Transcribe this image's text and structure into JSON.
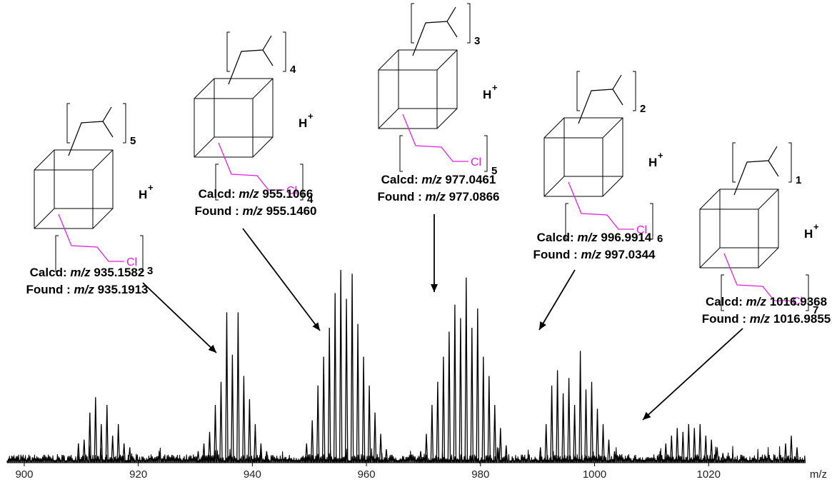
{
  "chart_data": {
    "type": "line",
    "xlabel": "m/z",
    "ylabel": "",
    "xlim": [
      897,
      1037
    ],
    "x_ticks": [
      "900",
      "920",
      "940",
      "960",
      "980",
      "1000",
      "1020"
    ],
    "ion_label": "H",
    "ion_charge": "+",
    "chloro_label": "Cl",
    "substituent_color": "#e020e0",
    "clusters": [
      {
        "n_isobutyl": "5",
        "n_chloropropyl": "3",
        "calcd_prefix": "Calcd: ",
        "calcd_mz_label": "m/z",
        "calcd_value": "935.1582",
        "found_prefix": "Found : ",
        "found_mz_label": "m/z",
        "found_value": "935.1913",
        "peaks": [
          [
            930.5,
            0.06
          ],
          [
            931.5,
            0.1
          ],
          [
            932.5,
            0.16
          ],
          [
            933.5,
            0.3
          ],
          [
            934.5,
            0.42
          ],
          [
            935.5,
            0.78
          ],
          [
            936.5,
            0.56
          ],
          [
            937.5,
            0.78
          ],
          [
            938.5,
            0.45
          ],
          [
            939.5,
            0.33
          ],
          [
            940.5,
            0.2
          ],
          [
            941.5,
            0.1
          ],
          [
            942.5,
            0.06
          ]
        ]
      },
      {
        "n_isobutyl": "4",
        "n_chloropropyl": "4",
        "calcd_prefix": "Calcd: ",
        "calcd_mz_label": "m/z",
        "calcd_value": "955.1066",
        "found_prefix": "Found : ",
        "found_mz_label": "m/z",
        "found_value": "955.1460",
        "peaks": [
          [
            949.5,
            0.1
          ],
          [
            950.5,
            0.22
          ],
          [
            951.5,
            0.4
          ],
          [
            952.5,
            0.55
          ],
          [
            953.5,
            0.7
          ],
          [
            954.5,
            0.88
          ],
          [
            955.5,
            1.0
          ],
          [
            956.5,
            0.85
          ],
          [
            957.5,
            0.98
          ],
          [
            958.5,
            0.72
          ],
          [
            959.5,
            0.55
          ],
          [
            960.5,
            0.4
          ],
          [
            961.5,
            0.26
          ],
          [
            962.5,
            0.15
          ],
          [
            963.5,
            0.07
          ]
        ]
      },
      {
        "n_isobutyl": "3",
        "n_chloropropyl": "5",
        "calcd_prefix": "Calcd: ",
        "calcd_mz_label": "m/z",
        "calcd_value": "977.0461",
        "found_prefix": "Found : ",
        "found_mz_label": "m/z",
        "found_value": "977.0866",
        "peaks": [
          [
            969.5,
            0.06
          ],
          [
            970.5,
            0.15
          ],
          [
            971.5,
            0.3
          ],
          [
            972.5,
            0.42
          ],
          [
            973.5,
            0.55
          ],
          [
            974.5,
            0.68
          ],
          [
            975.5,
            0.82
          ],
          [
            976.5,
            0.75
          ],
          [
            977.5,
            0.96
          ],
          [
            978.5,
            0.7
          ],
          [
            979.5,
            0.8
          ],
          [
            980.5,
            0.55
          ],
          [
            981.5,
            0.45
          ],
          [
            982.5,
            0.3
          ],
          [
            983.5,
            0.18
          ],
          [
            984.5,
            0.09
          ]
        ]
      },
      {
        "n_isobutyl": "2",
        "n_chloropropyl": "6",
        "calcd_prefix": "Calcd: ",
        "calcd_mz_label": "m/z",
        "calcd_value": "996.9914",
        "found_prefix": "Found : ",
        "found_mz_label": "m/z",
        "found_value": "997.0344",
        "peaks": [
          [
            990.5,
            0.08
          ],
          [
            991.5,
            0.2
          ],
          [
            992.5,
            0.4
          ],
          [
            993.5,
            0.48
          ],
          [
            994.5,
            0.36
          ],
          [
            995.5,
            0.44
          ],
          [
            996.5,
            0.3
          ],
          [
            997.5,
            0.58
          ],
          [
            998.5,
            0.38
          ],
          [
            999.5,
            0.42
          ],
          [
            1000.5,
            0.28
          ],
          [
            1001.5,
            0.2
          ],
          [
            1002.5,
            0.12
          ],
          [
            1003.5,
            0.06
          ]
        ]
      },
      {
        "n_isobutyl": "1",
        "n_chloropropyl": "7",
        "calcd_prefix": "Calcd: ",
        "calcd_mz_label": "m/z",
        "calcd_value": "1016.9368",
        "found_prefix": "Found : ",
        "found_mz_label": "m/z",
        "found_value": "1016.9855",
        "peaks": [
          [
            1011.5,
            0.06
          ],
          [
            1012.5,
            0.1
          ],
          [
            1013.5,
            0.14
          ],
          [
            1014.5,
            0.18
          ],
          [
            1015.5,
            0.16
          ],
          [
            1016.5,
            0.2
          ],
          [
            1017.5,
            0.18
          ],
          [
            1018.5,
            0.2
          ],
          [
            1019.5,
            0.14
          ],
          [
            1020.5,
            0.12
          ],
          [
            1021.5,
            0.08
          ],
          [
            1022.5,
            0.05
          ]
        ]
      }
    ],
    "minor_cluster": {
      "peaks": [
        [
          909.5,
          0.1
        ],
        [
          910.5,
          0.12
        ],
        [
          911.5,
          0.26
        ],
        [
          912.5,
          0.34
        ],
        [
          913.5,
          0.2
        ],
        [
          914.5,
          0.3
        ],
        [
          915.5,
          0.14
        ],
        [
          916.5,
          0.2
        ],
        [
          917.5,
          0.1
        ],
        [
          918.5,
          0.08
        ],
        [
          1033.5,
          0.1
        ],
        [
          1034.5,
          0.14
        ],
        [
          1035.5,
          0.08
        ]
      ]
    }
  }
}
